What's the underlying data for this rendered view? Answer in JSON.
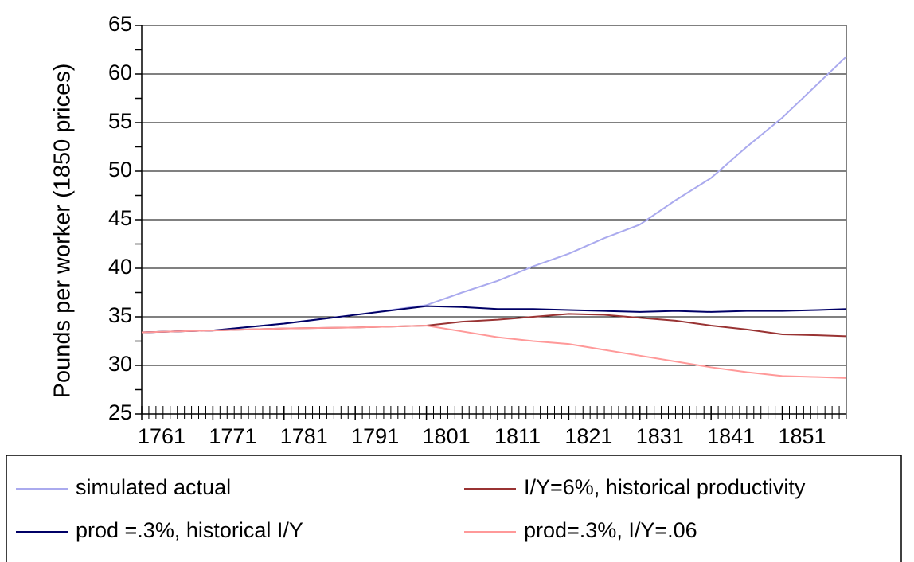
{
  "chart_data": {
    "type": "line",
    "ylabel": "Pounds per worker (1850 prices)",
    "x": [
      1761,
      1771,
      1781,
      1791,
      1801,
      1806,
      1811,
      1816,
      1821,
      1826,
      1831,
      1836,
      1841,
      1846,
      1851,
      1856,
      1860
    ],
    "series": [
      {
        "name": "simulated actual",
        "color": "#aaaaee",
        "values": [
          33.4,
          33.6,
          34.3,
          35.2,
          36.2,
          37.5,
          38.7,
          40.2,
          41.5,
          43.1,
          44.5,
          47.0,
          49.3,
          52.5,
          55.5,
          59.0,
          61.8
        ]
      },
      {
        "name": "I/Y=6%, historical productivity",
        "color": "#993333",
        "values": [
          33.4,
          33.6,
          33.8,
          33.9,
          34.1,
          34.5,
          34.7,
          35.0,
          35.3,
          35.2,
          34.9,
          34.6,
          34.1,
          33.7,
          33.2,
          33.1,
          33.0
        ]
      },
      {
        "name": "prod =.3%, historical I/Y",
        "color": "#000066",
        "values": [
          33.4,
          33.6,
          34.3,
          35.2,
          36.1,
          36.0,
          35.8,
          35.8,
          35.7,
          35.6,
          35.5,
          35.6,
          35.5,
          35.6,
          35.6,
          35.7,
          35.8
        ]
      },
      {
        "name": "prod=.3%, I/Y=.06",
        "color": "#ff9999",
        "values": [
          33.4,
          33.6,
          33.8,
          33.9,
          34.1,
          33.5,
          32.9,
          32.5,
          32.2,
          31.6,
          31.0,
          30.4,
          29.8,
          29.3,
          28.9,
          28.8,
          28.7
        ]
      }
    ],
    "xlim": [
      1761,
      1860
    ],
    "xticks": [
      1761,
      1771,
      1781,
      1791,
      1801,
      1811,
      1821,
      1831,
      1841,
      1851
    ],
    "ylim": [
      25,
      65
    ],
    "yticks": [
      25,
      30,
      35,
      40,
      45,
      50,
      55,
      60,
      65
    ],
    "grid": true
  }
}
